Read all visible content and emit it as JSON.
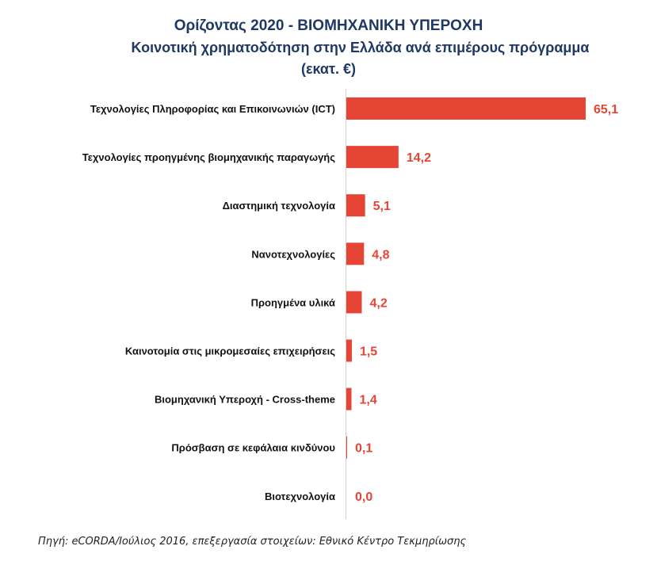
{
  "chart_data": {
    "type": "bar",
    "orientation": "horizontal",
    "title": "Ορίζοντας 2020 - ΒΙΟΜΗΧΑΝΙΚΗ ΥΠΕΡΟΧΗ",
    "subtitle": "Κοινοτική χρηματοδότηση στην Ελλάδα ανά επιμέρους πρόγραμμα",
    "unit": "(εκατ. €)",
    "categories": [
      "Τεχνολογίες Πληροφορίας και Επικοινωνιών (ICT)",
      "Τεχνολογίες προηγμένης βιομηχανικής παραγωγής",
      "Διαστημική τεχνολογία",
      "Νανοτεχνολογίες",
      "Προηγμένα υλικά",
      "Καινοτομία στις μικρομεσαίες επιχειρήσεις",
      "Βιομηχανική Υπεροχή - Cross-theme",
      "Πρόσβαση σε κεφάλαια κινδύνου",
      "Βιοτεχνολογία"
    ],
    "values": [
      65.1,
      14.2,
      5.1,
      4.8,
      4.2,
      1.5,
      1.4,
      0.1,
      0.0
    ],
    "value_labels": [
      "65,1",
      "14,2",
      "5,1",
      "4,8",
      "4,2",
      "1,5",
      "1,4",
      "0,1",
      "0,0"
    ],
    "xlim": [
      0,
      65.1
    ],
    "grid": false,
    "legend": "none",
    "bar_color": "#E64536",
    "label_color": "#E64536",
    "title_color": "#1F3864"
  },
  "source": "Πηγή: eCORDA/Ιούλιος 2016, επεξεργασία στοιχείων: Εθνικό Κέντρο Τεκμηρίωσης"
}
